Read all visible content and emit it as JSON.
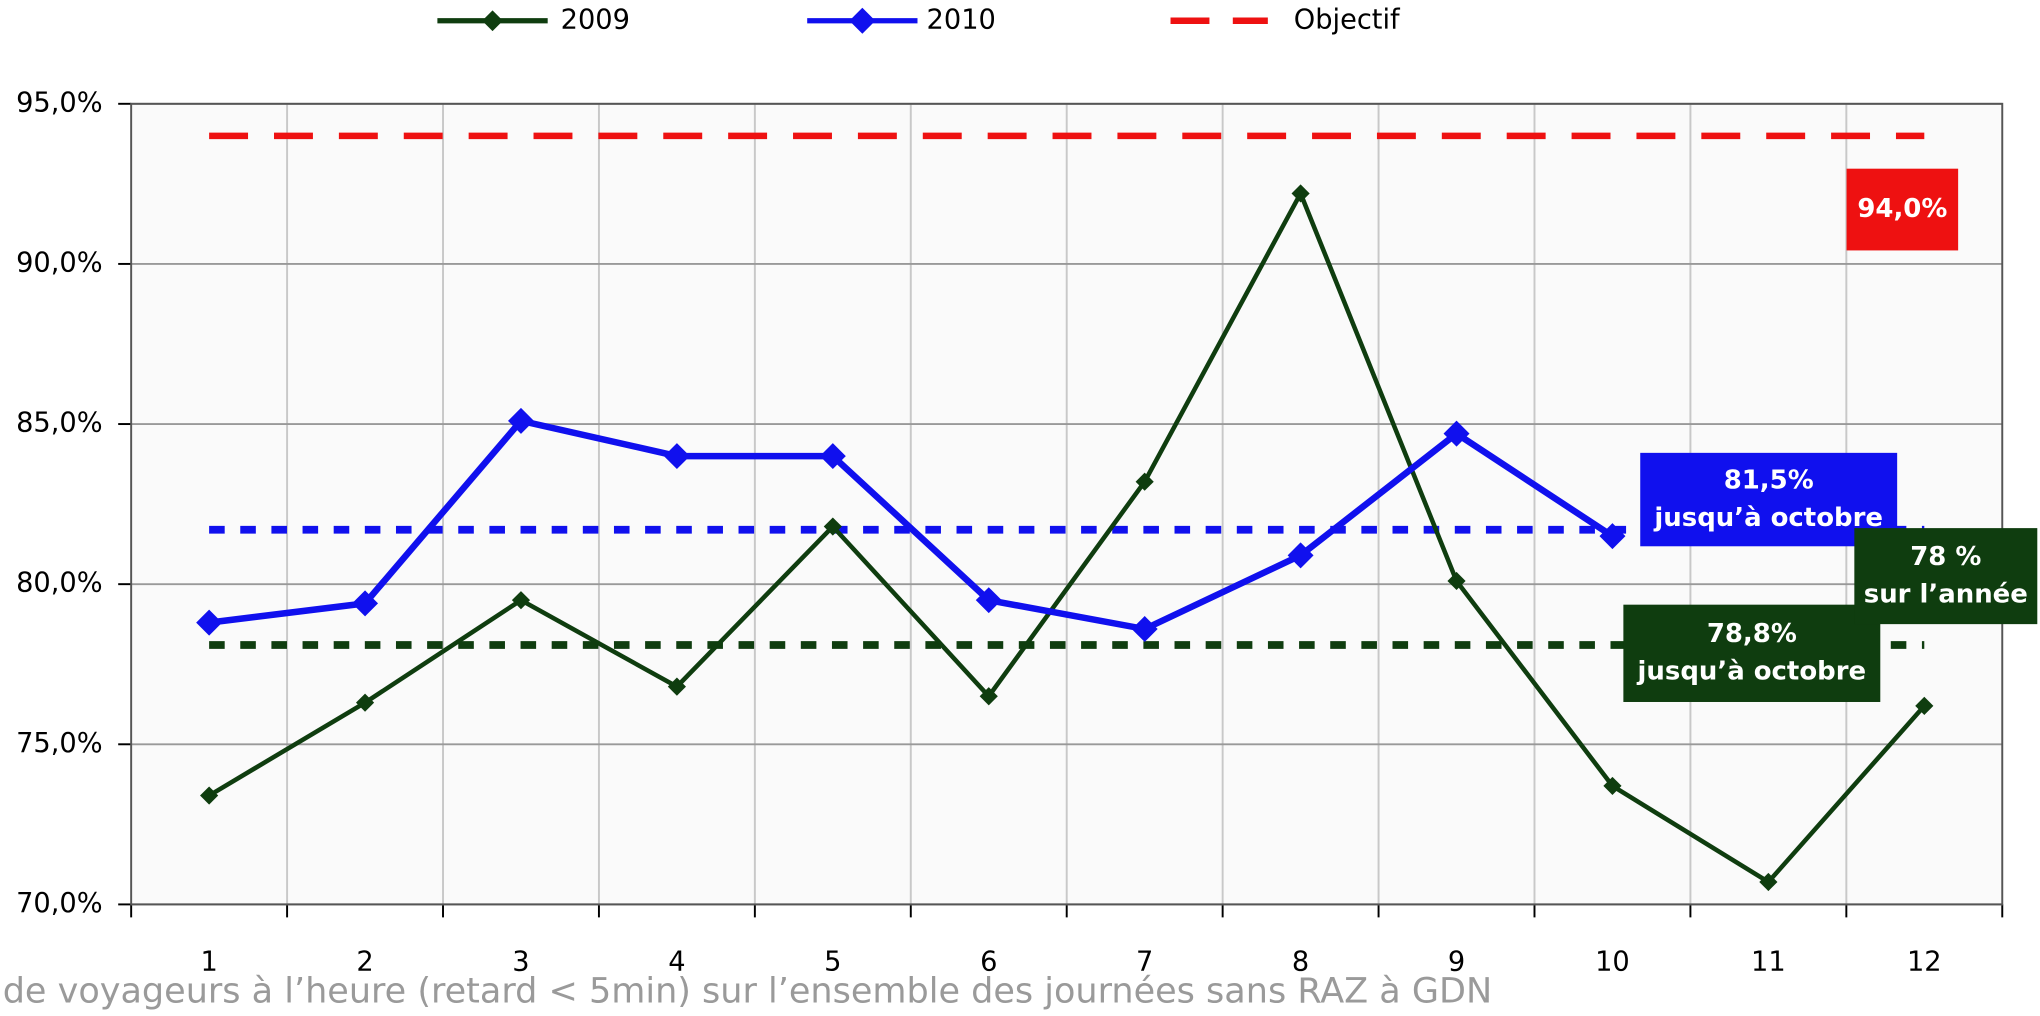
{
  "chart_data": {
    "type": "line",
    "categories": [
      "1",
      "2",
      "3",
      "4",
      "5",
      "6",
      "7",
      "8",
      "9",
      "10",
      "11",
      "12"
    ],
    "series": [
      {
        "name": "2009",
        "color": "#0f3d0f",
        "marker": "diamond",
        "values": [
          73.4,
          76.3,
          79.5,
          76.8,
          81.8,
          76.5,
          83.2,
          92.2,
          80.1,
          73.7,
          70.7,
          76.2
        ]
      },
      {
        "name": "2010",
        "color": "#1010ee",
        "marker": "diamond",
        "values": [
          78.8,
          79.4,
          85.1,
          84.0,
          84.0,
          79.5,
          78.6,
          80.9,
          84.7,
          81.5,
          null,
          null
        ]
      },
      {
        "name": "Objectif",
        "color": "#ee1111",
        "style": "dashed",
        "values": [
          94,
          94,
          94,
          94,
          94,
          94,
          94,
          94,
          94,
          94,
          94,
          94
        ]
      }
    ],
    "reference_lines": [
      {
        "value": 81.7,
        "color": "#1010ee"
      },
      {
        "value": 78.1,
        "color": "#0f3d0f"
      }
    ],
    "annotations": [
      {
        "lines": [
          "94,0%"
        ],
        "color": "#ee1111"
      },
      {
        "lines": [
          "81,5%",
          "jusqu’à octobre"
        ],
        "color": "#1010ee"
      },
      {
        "lines": [
          "78,8%",
          "jusqu’à octobre"
        ],
        "color": "#0f3d0f"
      },
      {
        "lines": [
          "78 %",
          "sur l’année"
        ],
        "color": "#0f3d0f"
      }
    ],
    "footnote": "de voyageurs à l’heure (retard < 5min) sur l’ensemble des journées sans RAZ à GDN",
    "ylim": [
      70,
      95
    ],
    "yticks": [
      {
        "value": 70,
        "label": "70,0%"
      },
      {
        "value": 75,
        "label": "75,0%"
      },
      {
        "value": 80,
        "label": "80,0%"
      },
      {
        "value": 85,
        "label": "85,0%"
      },
      {
        "value": 90,
        "label": "90,0%"
      },
      {
        "value": 95,
        "label": "95,0%"
      }
    ],
    "grid": true,
    "legend": "top"
  }
}
